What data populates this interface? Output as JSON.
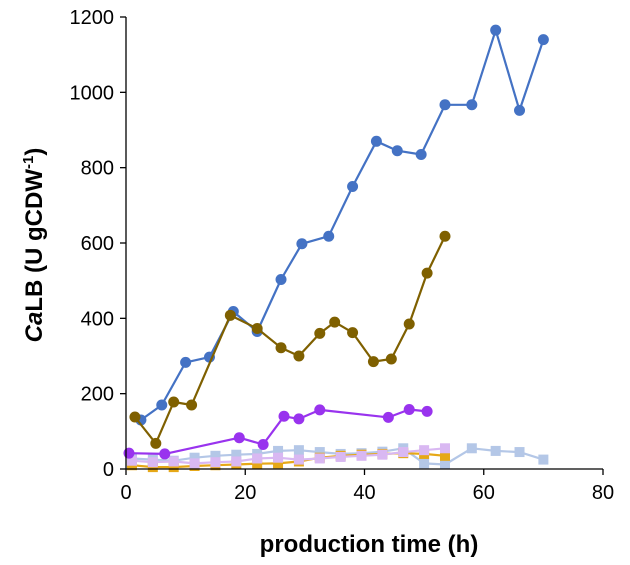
{
  "chart_data": {
    "type": "line",
    "title": "",
    "xlabel": "production time (h)",
    "ylabel_italic": "Ca",
    "ylabel_main": "LB (U gCDW",
    "ylabel_sup": "-1",
    "ylabel_close": ")",
    "xlim": [
      0,
      80
    ],
    "ylim": [
      0,
      1200
    ],
    "xticks": [
      0,
      20,
      40,
      60,
      80
    ],
    "yticks": [
      0,
      200,
      400,
      600,
      800,
      1000,
      1200
    ],
    "grid": false,
    "legend": "none",
    "series": [
      {
        "name": "series-blue",
        "color": "#4472C4",
        "marker": "circle",
        "x": [
          2.5,
          6,
          10,
          14,
          18,
          22,
          26,
          29.5,
          34,
          38,
          42,
          45.5,
          49.5,
          53.5,
          58,
          62,
          66,
          70
        ],
        "y": [
          130,
          170,
          283,
          297,
          418,
          365,
          503,
          598,
          618,
          750,
          870,
          845,
          835,
          967,
          967,
          1165,
          952,
          1140
        ]
      },
      {
        "name": "series-brown",
        "color": "#7F6000",
        "marker": "circle",
        "x": [
          1.5,
          5,
          8,
          11,
          17.5,
          22,
          26,
          29,
          32.5,
          35,
          38,
          41.5,
          44.5,
          47.5,
          50.5,
          53.5
        ],
        "y": [
          138,
          68,
          178,
          170,
          408,
          373,
          322,
          300,
          360,
          390,
          362,
          285,
          292,
          385,
          520,
          618
        ]
      },
      {
        "name": "series-purple",
        "color": "#9933EE",
        "marker": "circle",
        "x": [
          0.5,
          6.5,
          19,
          23,
          26.5,
          29,
          32.5,
          44,
          47.5,
          50.5
        ],
        "y": [
          42,
          40,
          83,
          65,
          140,
          133,
          157,
          137,
          158,
          153
        ]
      },
      {
        "name": "series-lightblue",
        "color": "#B4C7E7",
        "marker": "square",
        "x": [
          1,
          4.5,
          8,
          11.5,
          15,
          18.5,
          22,
          25.5,
          29,
          32.5,
          36,
          39.5,
          43,
          46.5,
          50,
          53.5,
          58,
          62,
          66,
          70
        ],
        "y": [
          28,
          25,
          22,
          30,
          35,
          38,
          40,
          48,
          50,
          45,
          40,
          42,
          46,
          55,
          15,
          12,
          55,
          48,
          45,
          25
        ]
      },
      {
        "name": "series-orange",
        "color": "#E6A817",
        "marker": "square",
        "x": [
          1,
          4.5,
          8,
          11.5,
          15,
          18.5,
          22,
          25.5,
          29,
          32.5,
          36,
          39.5,
          43,
          46.5,
          50,
          53.5
        ],
        "y": [
          10,
          5,
          5,
          8,
          10,
          12,
          14,
          15,
          20,
          30,
          35,
          38,
          40,
          42,
          40,
          35
        ]
      },
      {
        "name": "series-lightpurple",
        "color": "#D9B8F2",
        "marker": "square",
        "x": [
          1,
          4.5,
          8,
          11.5,
          15,
          18.5,
          22,
          25.5,
          29,
          32.5,
          36,
          39.5,
          43,
          46.5,
          50,
          53.5
        ],
        "y": [
          22,
          18,
          20,
          15,
          18,
          20,
          28,
          30,
          25,
          28,
          32,
          35,
          38,
          45,
          50,
          55
        ]
      }
    ]
  }
}
